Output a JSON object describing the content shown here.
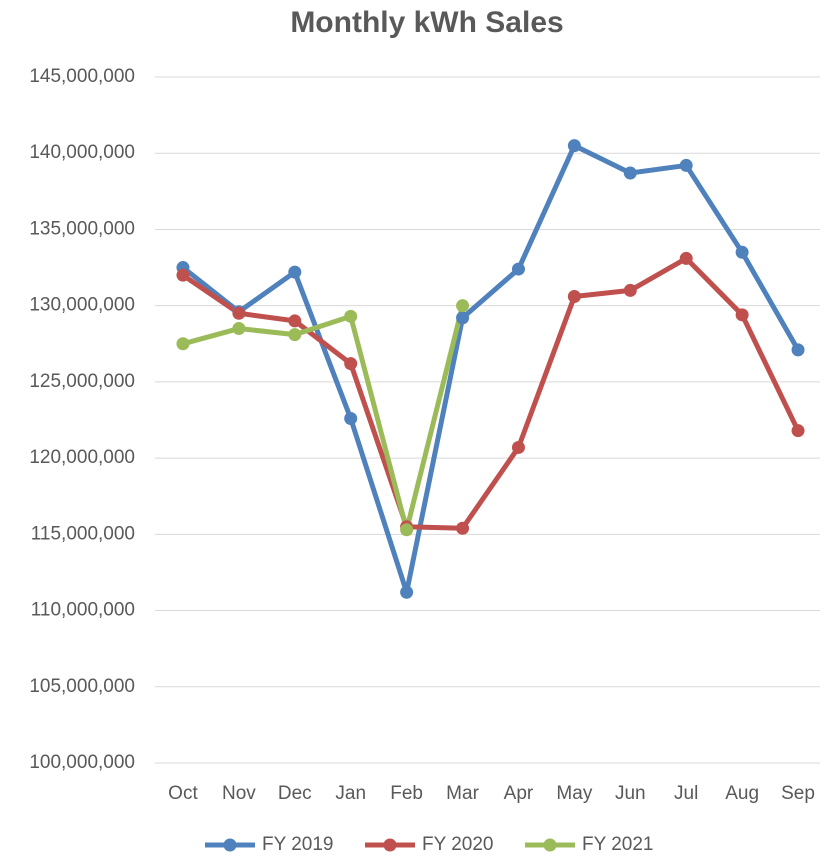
{
  "chart_data": {
    "type": "line",
    "title": "Monthly kWh Sales",
    "categories": [
      "Oct",
      "Nov",
      "Dec",
      "Jan",
      "Feb",
      "Mar",
      "Apr",
      "May",
      "Jun",
      "Jul",
      "Aug",
      "Sep"
    ],
    "series": [
      {
        "name": "FY 2019",
        "color": "#4f81bd",
        "values": [
          132500000,
          129600000,
          132200000,
          122600000,
          111200000,
          129200000,
          132400000,
          140500000,
          138700000,
          139200000,
          133500000,
          127100000
        ]
      },
      {
        "name": "FY 2020",
        "color": "#c0504d",
        "values": [
          132000000,
          129500000,
          129000000,
          126200000,
          115500000,
          115400000,
          120700000,
          130600000,
          131000000,
          133100000,
          129400000,
          121800000
        ]
      },
      {
        "name": "FY 2021",
        "color": "#9bbb59",
        "values": [
          127500000,
          128500000,
          128100000,
          129300000,
          115300000,
          130000000,
          null,
          null,
          null,
          null,
          null,
          null
        ]
      }
    ],
    "ylim": [
      100000000,
      145000000
    ],
    "yticks": [
      {
        "value": 100000000,
        "label": "100,000,000"
      },
      {
        "value": 105000000,
        "label": "105,000,000"
      },
      {
        "value": 110000000,
        "label": "110,000,000"
      },
      {
        "value": 115000000,
        "label": "115,000,000"
      },
      {
        "value": 120000000,
        "label": "120,000,000"
      },
      {
        "value": 125000000,
        "label": "125,000,000"
      },
      {
        "value": 130000000,
        "label": "130,000,000"
      },
      {
        "value": 135000000,
        "label": "135,000,000"
      },
      {
        "value": 140000000,
        "label": "140,000,000"
      },
      {
        "value": 145000000,
        "label": "145,000,000"
      }
    ],
    "grid": true,
    "legend": "bottom"
  }
}
